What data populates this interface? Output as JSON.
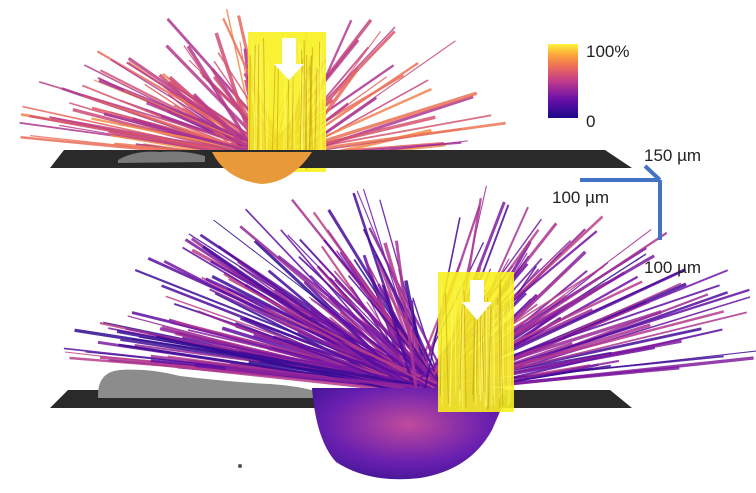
{
  "colorbar": {
    "max_label": "100%",
    "min_label": "0",
    "stops": [
      "#1b0a8a",
      "#6a0fa8",
      "#b43a8f",
      "#e8615f",
      "#f9a03f",
      "#fff23a"
    ]
  },
  "scale_bar": {
    "label_x": "150 µm",
    "label_y": "100 µm",
    "label_z": "100 µm",
    "color": "#4472c4"
  },
  "panels": [
    {
      "name": "top-panel",
      "beam_color": "#f7f01e",
      "substrate_color": "#2a2a2a"
    },
    {
      "name": "bottom-panel",
      "beam_color": "#f7f01e",
      "substrate_color": "#2a2a2a"
    }
  ]
}
